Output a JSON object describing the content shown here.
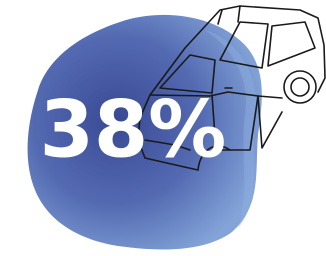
{
  "headline": "38%"
}
